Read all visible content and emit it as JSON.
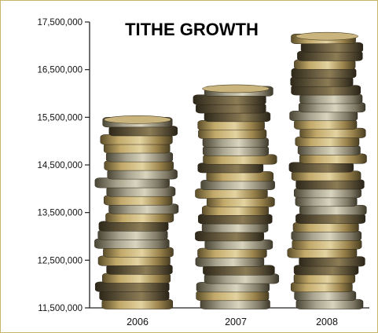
{
  "chart_data": {
    "type": "bar",
    "title": "TITHE GROWTH",
    "categories": [
      "2006",
      "2007",
      "2008"
    ],
    "values": [
      15500000,
      16150000,
      17250000
    ],
    "ylim": [
      11500000,
      17500000
    ],
    "yticks": [
      11500000,
      12500000,
      13500000,
      14500000,
      15500000,
      16500000,
      17500000
    ],
    "ytick_labels": [
      "11,500,000",
      "12,500,000",
      "13,500,000",
      "14,500,000",
      "15,500,000",
      "16,500,000",
      "17,500,000"
    ],
    "xlabel": "",
    "ylabel": "",
    "grid": false,
    "bar_style": "stacked-coins"
  },
  "colors": {
    "page_background": "#fbf6dc",
    "frame_border": "#c8b56a",
    "axis": "#222222",
    "coin_gold": "#b39a5c",
    "coin_silver": "#8f8a78",
    "coin_dark": "#4d4632"
  }
}
